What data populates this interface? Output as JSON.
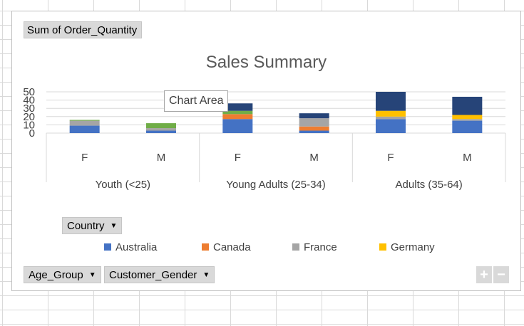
{
  "pivot": {
    "value_field": "Sum of Order_Quantity",
    "legend_field": "Country",
    "axis_fields": [
      "Age_Group",
      "Customer_Gender"
    ]
  },
  "tooltip": "Chart Area",
  "zoom": {
    "plus": "+",
    "minus": "−"
  },
  "chart_data": {
    "type": "bar",
    "stacked": true,
    "title": "Sales Summary",
    "y_ticks": [
      "0",
      "10",
      "20",
      "30",
      "40",
      "50"
    ],
    "ylim": [
      0,
      50
    ],
    "gridlines": true,
    "categories": [
      "F",
      "M",
      "F",
      "M",
      "F",
      "M"
    ],
    "groups": [
      {
        "label": "Youth (<25)",
        "span": 2
      },
      {
        "label": "Young Adults (25-34)",
        "span": 2
      },
      {
        "label": "Adults (35-64)",
        "span": 2
      }
    ],
    "legend_position": "bottom",
    "series": [
      {
        "name": "Australia",
        "color": "#4472C4",
        "values": [
          9,
          3,
          17,
          3,
          17,
          15
        ]
      },
      {
        "name": "Canada",
        "color": "#ED7D31",
        "values": [
          0,
          0,
          6,
          5,
          0,
          0
        ]
      },
      {
        "name": "France",
        "color": "#A5A5A5",
        "values": [
          6,
          3,
          0,
          10,
          3,
          2
        ]
      },
      {
        "name": "Germany",
        "color": "#FFC000",
        "values": [
          0,
          0,
          0,
          0,
          7,
          5
        ]
      },
      {
        "color": "#70AD47",
        "values": [
          1,
          6,
          4,
          0,
          0,
          0
        ]
      },
      {
        "color": "#264478",
        "values": [
          0,
          0,
          9,
          6,
          23,
          22
        ]
      }
    ]
  }
}
